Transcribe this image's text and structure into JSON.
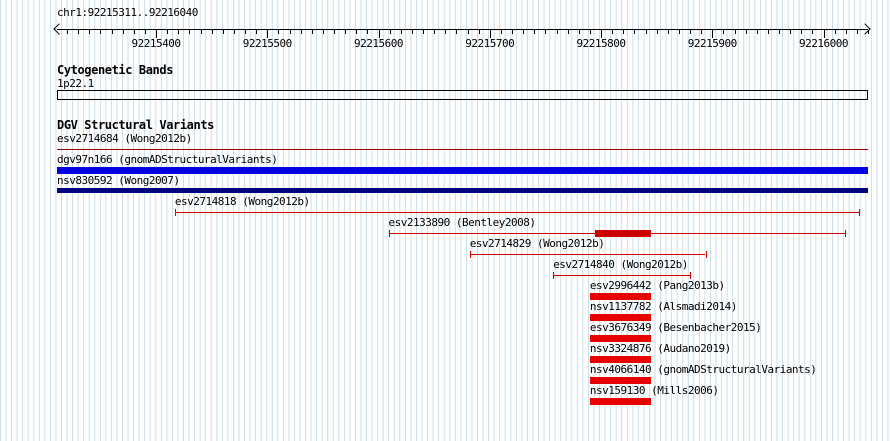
{
  "header": {
    "region_label": "chr1:92215311..92216040"
  },
  "cytobands": {
    "title": "Cytogenetic Bands",
    "bands": [
      {
        "name": "1p22.1"
      }
    ]
  },
  "dgv": {
    "title": "DGV Structural Variants"
  },
  "colors": {
    "grid": "#c9dae9",
    "axis": "#000000",
    "red_line": "#cc0000",
    "red_bar": "#e60000",
    "blue_bar": "#0000e0",
    "navy_bar": "#000080"
  },
  "chart_data": {
    "type": "genome-tracks",
    "title": "DGV Structural Variants at chr1:92215311..92216040",
    "view": {
      "chrom": "chr1",
      "start": 92215311,
      "end": 92216040
    },
    "ruler": {
      "minor_tick_interval": 10,
      "major_tick_interval": 100,
      "major_tick_labels": [
        "92215400",
        "92215500",
        "92215600",
        "92215700",
        "92215800",
        "92215900",
        "92216000"
      ]
    },
    "cytobands": [
      {
        "name": "1p22.1",
        "spans_view": true
      }
    ],
    "tracks": [
      {
        "id": "esv2714684",
        "label": "esv2714684 (Wong2012b)",
        "study": "Wong2012b",
        "glyph": "line",
        "color": "#990000",
        "start": 92215311,
        "end": 92216040,
        "clipped": true
      },
      {
        "id": "dgv97n166",
        "label": "dgv97n166 (gnomADStructuralVariants)",
        "study": "gnomADStructuralVariants",
        "glyph": "bar",
        "height": 7,
        "color": "#0000e0",
        "start": 92215311,
        "end": 92216040,
        "clipped": true
      },
      {
        "id": "nsv830592",
        "label": "nsv830592 (Wong2007)",
        "study": "Wong2007",
        "glyph": "bar",
        "height": 5,
        "color": "#000080",
        "start": 92215311,
        "end": 92216040,
        "clipped": true
      },
      {
        "id": "esv2714818",
        "label": "esv2714818 (Wong2012b)",
        "study": "Wong2012b",
        "glyph": "line",
        "color": "#cc0000",
        "start": 92215417,
        "end": 92216032
      },
      {
        "id": "esv2133890",
        "label": "esv2133890 (Bentley2008)",
        "study": "Bentley2008",
        "glyph": "line",
        "color": "#cc0000",
        "start": 92215609,
        "end": 92216019,
        "thick_start": 92215795,
        "thick_end": 92215845
      },
      {
        "id": "esv2714829",
        "label": "esv2714829 (Wong2012b)",
        "study": "Wong2012b",
        "glyph": "line",
        "color": "#cc0000",
        "start": 92215682,
        "end": 92215894
      },
      {
        "id": "esv2714840",
        "label": "esv2714840 (Wong2012b)",
        "study": "Wong2012b",
        "glyph": "line",
        "color": "#cc0000",
        "start": 92215757,
        "end": 92215880
      },
      {
        "id": "esv2996442",
        "label": "esv2996442 (Pang2013b)",
        "study": "Pang2013b",
        "glyph": "bar",
        "height": 7,
        "color": "#e60000",
        "start": 92215790,
        "end": 92215845
      },
      {
        "id": "nsv1137782",
        "label": "nsv1137782 (Alsmadi2014)",
        "study": "Alsmadi2014",
        "glyph": "bar",
        "height": 7,
        "color": "#e60000",
        "start": 92215790,
        "end": 92215845
      },
      {
        "id": "esv3676349",
        "label": "esv3676349 (Besenbacher2015)",
        "study": "Besenbacher2015",
        "glyph": "bar",
        "height": 7,
        "color": "#e60000",
        "start": 92215790,
        "end": 92215845
      },
      {
        "id": "nsv3324876",
        "label": "nsv3324876 (Audano2019)",
        "study": "Audano2019",
        "glyph": "bar",
        "height": 7,
        "color": "#e60000",
        "start": 92215790,
        "end": 92215845
      },
      {
        "id": "nsv4066140",
        "label": "nsv4066140 (gnomADStructuralVariants)",
        "study": "gnomADStructuralVariants",
        "glyph": "bar",
        "height": 7,
        "color": "#e60000",
        "start": 92215790,
        "end": 92215845
      },
      {
        "id": "nsv159130",
        "label": "nsv159130 (Mills2006)",
        "study": "Mills2006",
        "glyph": "bar",
        "height": 7,
        "color": "#e60000",
        "start": 92215790,
        "end": 92215845
      }
    ]
  }
}
